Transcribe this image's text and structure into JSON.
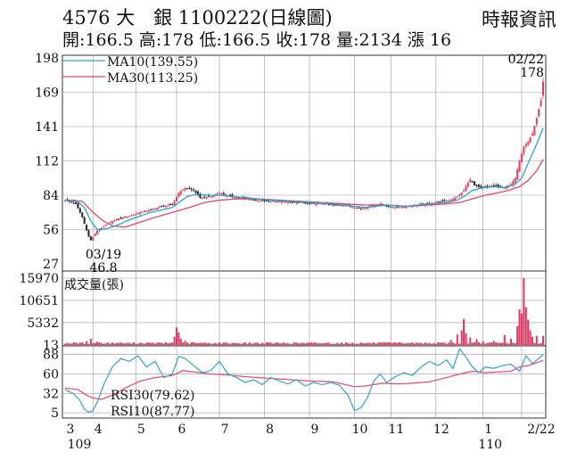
{
  "header": {
    "title": "4576 大　銀 1100222(日線圖)",
    "source": "時報資訊",
    "stats": "開:166.5 高:178 低:166.5 收:178 量:2134 漲 16"
  },
  "colors": {
    "price_up": "#e83a5c",
    "price_down": "#222222",
    "ma10": "#2aa3c9",
    "ma30": "#e0476e",
    "volume": "#e03660",
    "rsi30": "#e0476e",
    "rsi10": "#3aa0c8",
    "grid": "#999999"
  },
  "chart_data": [
    {
      "type": "candlestick",
      "name": "price",
      "yticks": [
        198,
        169,
        141,
        112,
        84,
        56,
        27
      ],
      "ylim": [
        27,
        198
      ],
      "legend": [
        {
          "label": "MA10(139.55)",
          "color": "#2aa3c9"
        },
        {
          "label": "MA30(113.25)",
          "color": "#e0476e"
        }
      ],
      "annotations": [
        {
          "text": "02/22",
          "value": 178
        },
        {
          "text": "178",
          "value": 178
        },
        {
          "text": "03/19",
          "value": 46.8
        },
        {
          "text": "46.8",
          "value": 46.8
        }
      ],
      "x_month_anchors": [
        {
          "month": 3,
          "start": 0
        },
        {
          "month": 4,
          "start": 13
        },
        {
          "month": 5,
          "start": 33
        },
        {
          "month": 6,
          "start": 52
        },
        {
          "month": 7,
          "start": 72
        },
        {
          "month": 8,
          "start": 93
        },
        {
          "month": 9,
          "start": 114
        },
        {
          "month": 10,
          "start": 135
        },
        {
          "month": 11,
          "start": 152
        },
        {
          "month": 12,
          "start": 173
        },
        {
          "month": 1,
          "start": 195
        },
        {
          "month": 2,
          "start": 213
        }
      ],
      "close_anchors": [
        [
          0,
          80
        ],
        [
          5,
          77
        ],
        [
          8,
          66
        ],
        [
          11,
          50
        ],
        [
          12,
          47
        ],
        [
          15,
          55
        ],
        [
          20,
          61
        ],
        [
          25,
          65
        ],
        [
          30,
          67
        ],
        [
          35,
          70
        ],
        [
          40,
          72
        ],
        [
          45,
          75
        ],
        [
          50,
          76
        ],
        [
          53,
          86
        ],
        [
          56,
          90
        ],
        [
          60,
          88
        ],
        [
          63,
          82
        ],
        [
          68,
          83
        ],
        [
          72,
          86
        ],
        [
          75,
          84
        ],
        [
          80,
          82
        ],
        [
          85,
          81
        ],
        [
          90,
          80
        ],
        [
          95,
          79
        ],
        [
          100,
          79
        ],
        [
          105,
          78
        ],
        [
          110,
          78
        ],
        [
          115,
          77
        ],
        [
          120,
          77
        ],
        [
          125,
          76
        ],
        [
          130,
          76
        ],
        [
          135,
          74
        ],
        [
          138,
          73
        ],
        [
          142,
          75
        ],
        [
          147,
          77
        ],
        [
          150,
          75
        ],
        [
          155,
          74
        ],
        [
          160,
          75
        ],
        [
          165,
          76
        ],
        [
          170,
          77
        ],
        [
          175,
          79
        ],
        [
          180,
          80
        ],
        [
          183,
          83
        ],
        [
          186,
          88
        ],
        [
          189,
          97
        ],
        [
          191,
          92
        ],
        [
          194,
          90
        ],
        [
          197,
          91
        ],
        [
          200,
          92
        ],
        [
          203,
          91
        ],
        [
          206,
          90
        ],
        [
          208,
          93
        ],
        [
          210,
          98
        ],
        [
          212,
          112
        ],
        [
          214,
          124
        ],
        [
          216,
          128
        ],
        [
          218,
          135
        ],
        [
          220,
          148
        ],
        [
          222,
          162
        ],
        [
          223,
          178
        ]
      ],
      "ma10_anchors": [
        [
          0,
          80
        ],
        [
          5,
          80
        ],
        [
          9,
          74
        ],
        [
          12,
          63
        ],
        [
          15,
          56
        ],
        [
          20,
          57
        ],
        [
          25,
          60
        ],
        [
          30,
          64
        ],
        [
          35,
          67
        ],
        [
          40,
          70
        ],
        [
          45,
          72
        ],
        [
          50,
          74
        ],
        [
          53,
          78
        ],
        [
          57,
          83
        ],
        [
          62,
          85
        ],
        [
          66,
          84
        ],
        [
          72,
          84
        ],
        [
          78,
          83
        ],
        [
          85,
          82
        ],
        [
          95,
          80
        ],
        [
          105,
          79
        ],
        [
          115,
          78
        ],
        [
          125,
          77
        ],
        [
          135,
          75
        ],
        [
          140,
          74
        ],
        [
          150,
          76
        ],
        [
          160,
          75
        ],
        [
          170,
          77
        ],
        [
          178,
          78
        ],
        [
          183,
          80
        ],
        [
          187,
          84
        ],
        [
          190,
          88
        ],
        [
          195,
          90
        ],
        [
          200,
          91
        ],
        [
          205,
          90
        ],
        [
          210,
          93
        ],
        [
          213,
          98
        ],
        [
          216,
          110
        ],
        [
          219,
          122
        ],
        [
          223,
          139.55
        ]
      ],
      "ma30_anchors": [
        [
          0,
          80
        ],
        [
          8,
          79
        ],
        [
          13,
          70
        ],
        [
          17,
          64
        ],
        [
          22,
          59
        ],
        [
          28,
          58
        ],
        [
          35,
          62
        ],
        [
          42,
          66
        ],
        [
          50,
          70
        ],
        [
          58,
          74
        ],
        [
          65,
          78
        ],
        [
          72,
          80
        ],
        [
          80,
          81
        ],
        [
          90,
          81
        ],
        [
          100,
          80
        ],
        [
          110,
          79
        ],
        [
          120,
          78
        ],
        [
          130,
          77
        ],
        [
          140,
          76
        ],
        [
          150,
          76
        ],
        [
          160,
          75
        ],
        [
          170,
          76
        ],
        [
          178,
          77
        ],
        [
          184,
          78
        ],
        [
          190,
          81
        ],
        [
          196,
          84
        ],
        [
          202,
          86
        ],
        [
          207,
          88
        ],
        [
          212,
          91
        ],
        [
          216,
          96
        ],
        [
          220,
          104
        ],
        [
          223,
          113.25
        ]
      ]
    },
    {
      "type": "bar",
      "name": "volume",
      "title": "成交量(張)",
      "yticks": [
        15970,
        10651,
        5332,
        13
      ],
      "ylim": [
        0,
        15970
      ],
      "spikes": [
        [
          0,
          300
        ],
        [
          10,
          900
        ],
        [
          12,
          1500
        ],
        [
          15,
          800
        ],
        [
          20,
          600
        ],
        [
          25,
          500
        ],
        [
          30,
          500
        ],
        [
          40,
          500
        ],
        [
          50,
          600
        ],
        [
          51,
          2000
        ],
        [
          52,
          4200
        ],
        [
          53,
          3000
        ],
        [
          54,
          1500
        ],
        [
          56,
          1000
        ],
        [
          60,
          700
        ],
        [
          70,
          500
        ],
        [
          80,
          400
        ],
        [
          100,
          400
        ],
        [
          120,
          400
        ],
        [
          140,
          400
        ],
        [
          160,
          500
        ],
        [
          175,
          600
        ],
        [
          180,
          1200
        ],
        [
          183,
          2500
        ],
        [
          185,
          3500
        ],
        [
          186,
          6200
        ],
        [
          187,
          2800
        ],
        [
          189,
          1800
        ],
        [
          192,
          1400
        ],
        [
          195,
          900
        ],
        [
          200,
          1000
        ],
        [
          205,
          2400
        ],
        [
          208,
          1500
        ],
        [
          211,
          4500
        ],
        [
          212,
          8500
        ],
        [
          213,
          7500
        ],
        [
          214,
          15970
        ],
        [
          215,
          9000
        ],
        [
          216,
          6000
        ],
        [
          217,
          3500
        ],
        [
          218,
          2000
        ],
        [
          220,
          2200
        ],
        [
          223,
          2134
        ]
      ]
    },
    {
      "type": "line",
      "name": "rsi",
      "yticks": [
        88,
        60,
        32,
        5
      ],
      "ylim": [
        0,
        100
      ],
      "series": [
        {
          "name": "RSI30(79.62)",
          "values": [
            [
              0,
              40
            ],
            [
              6,
              38
            ],
            [
              10,
              30
            ],
            [
              13,
              26
            ],
            [
              17,
              24
            ],
            [
              22,
              30
            ],
            [
              28,
              40
            ],
            [
              35,
              50
            ],
            [
              42,
              55
            ],
            [
              50,
              58
            ],
            [
              55,
              65
            ],
            [
              60,
              63
            ],
            [
              68,
              60
            ],
            [
              75,
              59
            ],
            [
              85,
              56
            ],
            [
              95,
              54
            ],
            [
              105,
              52
            ],
            [
              115,
              50
            ],
            [
              125,
              49
            ],
            [
              135,
              42
            ],
            [
              140,
              43
            ],
            [
              148,
              47
            ],
            [
              155,
              46
            ],
            [
              162,
              47
            ],
            [
              170,
              49
            ],
            [
              178,
              55
            ],
            [
              184,
              60
            ],
            [
              190,
              64
            ],
            [
              196,
              62
            ],
            [
              202,
              63
            ],
            [
              208,
              64
            ],
            [
              212,
              70
            ],
            [
              216,
              72
            ],
            [
              220,
              76
            ],
            [
              223,
              79.62
            ]
          ]
        },
        {
          "name": "RSI10(87.77)",
          "values": [
            [
              0,
              38
            ],
            [
              4,
              32
            ],
            [
              7,
              22
            ],
            [
              9,
              10
            ],
            [
              11,
              6
            ],
            [
              13,
              8
            ],
            [
              15,
              20
            ],
            [
              18,
              45
            ],
            [
              22,
              70
            ],
            [
              26,
              82
            ],
            [
              30,
              78
            ],
            [
              34,
              86
            ],
            [
              38,
              70
            ],
            [
              42,
              78
            ],
            [
              46,
              55
            ],
            [
              50,
              60
            ],
            [
              53,
              85
            ],
            [
              56,
              82
            ],
            [
              60,
              72
            ],
            [
              64,
              62
            ],
            [
              68,
              65
            ],
            [
              72,
              78
            ],
            [
              76,
              60
            ],
            [
              80,
              55
            ],
            [
              84,
              48
            ],
            [
              88,
              52
            ],
            [
              92,
              45
            ],
            [
              96,
              55
            ],
            [
              100,
              50
            ],
            [
              104,
              46
            ],
            [
              108,
              52
            ],
            [
              112,
              43
            ],
            [
              116,
              48
            ],
            [
              120,
              45
            ],
            [
              124,
              48
            ],
            [
              128,
              44
            ],
            [
              132,
              30
            ],
            [
              135,
              8
            ],
            [
              138,
              12
            ],
            [
              141,
              26
            ],
            [
              144,
              50
            ],
            [
              147,
              60
            ],
            [
              150,
              48
            ],
            [
              154,
              56
            ],
            [
              158,
              62
            ],
            [
              162,
              58
            ],
            [
              166,
              70
            ],
            [
              170,
              78
            ],
            [
              174,
              72
            ],
            [
              178,
              80
            ],
            [
              181,
              68
            ],
            [
              184,
              96
            ],
            [
              187,
              84
            ],
            [
              190,
              70
            ],
            [
              193,
              62
            ],
            [
              196,
              70
            ],
            [
              200,
              68
            ],
            [
              204,
              72
            ],
            [
              208,
              74
            ],
            [
              212,
              64
            ],
            [
              215,
              86
            ],
            [
              218,
              75
            ],
            [
              221,
              82
            ],
            [
              223,
              87.77
            ]
          ]
        }
      ]
    }
  ],
  "x_axis": {
    "ticks": [
      "3",
      "4",
      "5",
      "6",
      "7",
      "8",
      "9",
      "10",
      "11",
      "12",
      "1",
      "2/22"
    ],
    "year_labels": [
      "109",
      "110"
    ]
  }
}
